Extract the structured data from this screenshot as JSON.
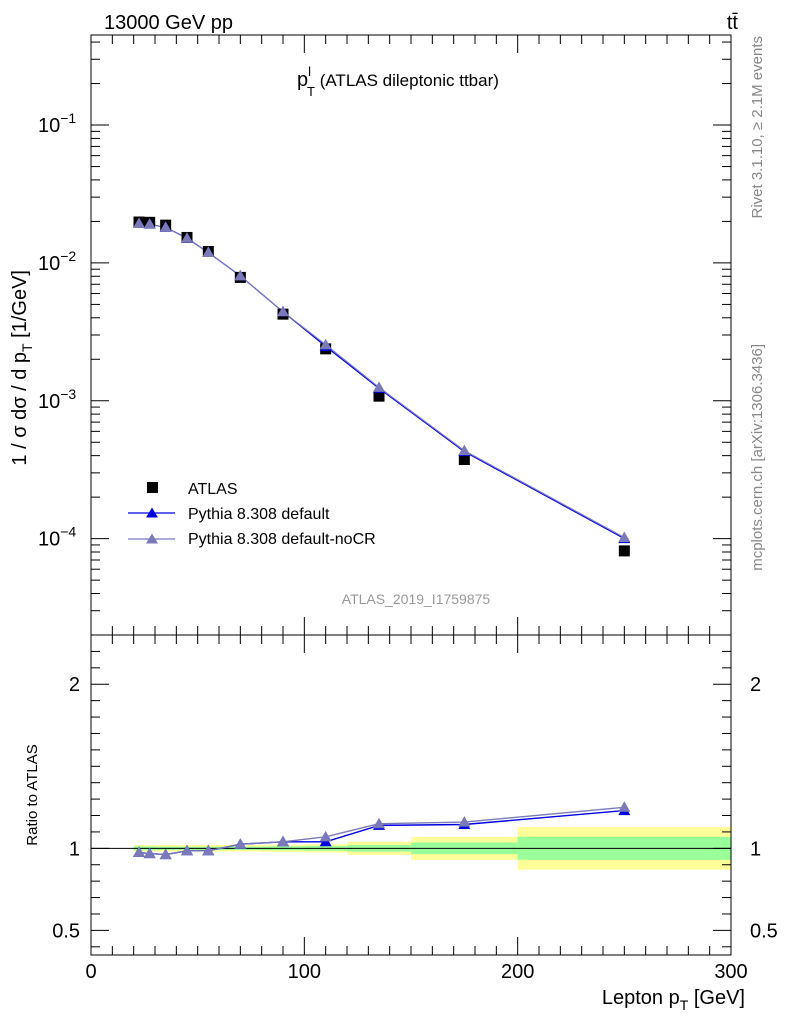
{
  "header": {
    "left": "13000 GeV pp",
    "right": "tt̄"
  },
  "side": {
    "rivet": "Rivet 3.1.10, ≥ 2.1M events",
    "mcplots": "mcplots.cern.ch [arXiv:1306.3436]"
  },
  "chart_data": [
    {
      "type": "scatter",
      "panel": "main",
      "title_main": "p",
      "title_sup": "l",
      "title_sub": "T",
      "title_rest": " (ATLAS dileptonic ttbar)",
      "ylabel_main": "1 / σ  dσ / d p",
      "ylabel_sub": "T",
      "ylabel_unit": " [1/GeV]",
      "yscale": "log",
      "ylim": [
        2e-05,
        0.45
      ],
      "xlim": [
        0,
        300
      ],
      "yticks": [
        {
          "base": "10",
          "exp": "−1",
          "value": 0.1
        },
        {
          "base": "10",
          "exp": "−2",
          "value": 0.01
        },
        {
          "base": "10",
          "exp": "−3",
          "value": 0.001
        },
        {
          "base": "10",
          "exp": "−4",
          "value": 0.0001
        }
      ],
      "watermark": "ATLAS_2019_I1759875",
      "legend_position": "bottom-left",
      "series": [
        {
          "name": "ATLAS",
          "marker": "square",
          "color": "#000000",
          "x": [
            22.5,
            27.5,
            35,
            45,
            55,
            70,
            90,
            110,
            135,
            175,
            250
          ],
          "y": [
            0.0198,
            0.0197,
            0.0188,
            0.0153,
            0.0121,
            0.00785,
            0.00425,
            0.00238,
            0.00108,
            0.000375,
            8.15e-05
          ]
        },
        {
          "name": "Pythia 8.308 default",
          "marker": "triangle",
          "color": "#0000e0",
          "x": [
            22.5,
            27.5,
            35,
            45,
            55,
            70,
            90,
            110,
            135,
            175,
            250
          ],
          "y": [
            0.0193,
            0.0191,
            0.0181,
            0.0151,
            0.0119,
            0.00805,
            0.00442,
            0.00248,
            0.00123,
            0.000428,
            0.0001
          ]
        },
        {
          "name": "Pythia 8.308 default-noCR",
          "marker": "triangle",
          "color": "#7a7ab8",
          "x": [
            22.5,
            27.5,
            35,
            45,
            55,
            70,
            90,
            110,
            135,
            175,
            250
          ],
          "y": [
            0.0193,
            0.0191,
            0.0181,
            0.0151,
            0.0119,
            0.00805,
            0.00442,
            0.00255,
            0.00125,
            0.000435,
            0.000102
          ]
        }
      ]
    },
    {
      "type": "line",
      "panel": "ratio",
      "ylabel": "Ratio to ATLAS",
      "xlabel_main": "Lepton p",
      "xlabel_sub": "T",
      "xlabel_unit": " [GeV]",
      "xlim": [
        0,
        300
      ],
      "ylim": [
        0.35,
        2.3
      ],
      "xticks": [
        {
          "label": "0",
          "value": 0
        },
        {
          "label": "100",
          "value": 100
        },
        {
          "label": "200",
          "value": 200
        },
        {
          "label": "300",
          "value": 300
        }
      ],
      "yticks": [
        {
          "label": "0.5",
          "value": 0.5
        },
        {
          "label": "1",
          "value": 1
        },
        {
          "label": "2",
          "value": 2
        }
      ],
      "bands": [
        {
          "x0": 20,
          "x1": 25,
          "stat": 0.012,
          "total": 0.02
        },
        {
          "x0": 25,
          "x1": 30,
          "stat": 0.012,
          "total": 0.02
        },
        {
          "x0": 30,
          "x1": 40,
          "stat": 0.01,
          "total": 0.02
        },
        {
          "x0": 40,
          "x1": 50,
          "stat": 0.01,
          "total": 0.02
        },
        {
          "x0": 50,
          "x1": 60,
          "stat": 0.01,
          "total": 0.02
        },
        {
          "x0": 60,
          "x1": 80,
          "stat": 0.01,
          "total": 0.02
        },
        {
          "x0": 80,
          "x1": 100,
          "stat": 0.012,
          "total": 0.022
        },
        {
          "x0": 100,
          "x1": 120,
          "stat": 0.014,
          "total": 0.025
        },
        {
          "x0": 120,
          "x1": 150,
          "stat": 0.02,
          "total": 0.04
        },
        {
          "x0": 150,
          "x1": 200,
          "stat": 0.035,
          "total": 0.07
        },
        {
          "x0": 200,
          "x1": 300,
          "stat": 0.07,
          "total": 0.13
        }
      ],
      "series": [
        {
          "name": "Pythia 8.308 default",
          "color": "#0000e0",
          "x": [
            22.5,
            27.5,
            35,
            45,
            55,
            70,
            90,
            110,
            135,
            175,
            250
          ],
          "y": [
            0.975,
            0.968,
            0.962,
            0.985,
            0.985,
            1.025,
            1.04,
            1.04,
            1.14,
            1.145,
            1.23
          ]
        },
        {
          "name": "Pythia 8.308 default-noCR",
          "color": "#7a7ab8",
          "x": [
            22.5,
            27.5,
            35,
            45,
            55,
            70,
            90,
            110,
            135,
            175,
            250
          ],
          "y": [
            0.975,
            0.968,
            0.962,
            0.985,
            0.985,
            1.025,
            1.04,
            1.07,
            1.15,
            1.16,
            1.25
          ]
        }
      ]
    }
  ]
}
